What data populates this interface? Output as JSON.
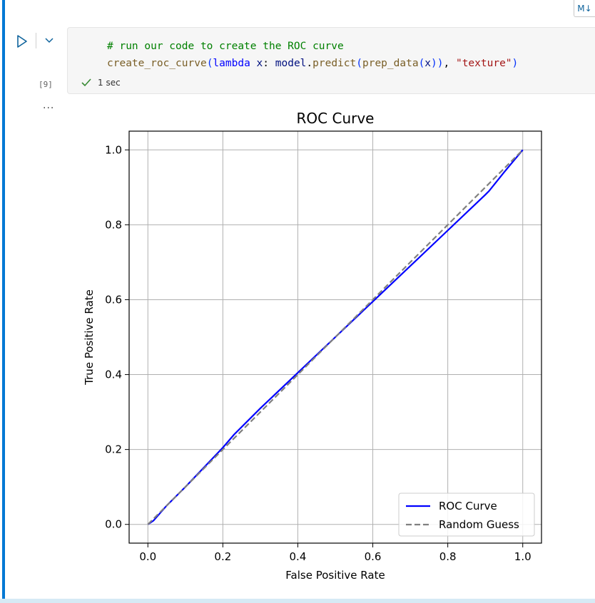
{
  "badge": {
    "label": "M↓"
  },
  "cell": {
    "execution_count": "[9]",
    "code_lines": [
      {
        "tokens": [
          {
            "t": "# run our code to create the ROC curve",
            "c": "c-comment"
          }
        ]
      },
      {
        "tokens": [
          {
            "t": "create_roc_curve",
            "c": "c-func"
          },
          {
            "t": "(",
            "c": "c-paren"
          },
          {
            "t": "lambda",
            "c": "c-kw"
          },
          {
            "t": " ",
            "c": "c-punc"
          },
          {
            "t": "x",
            "c": "c-var"
          },
          {
            "t": ": ",
            "c": "c-punc"
          },
          {
            "t": "model",
            "c": "c-var"
          },
          {
            "t": ".",
            "c": "c-punc"
          },
          {
            "t": "predict",
            "c": "c-func"
          },
          {
            "t": "(",
            "c": "c-paren"
          },
          {
            "t": "prep_data",
            "c": "c-func"
          },
          {
            "t": "(",
            "c": "c-paren"
          },
          {
            "t": "x",
            "c": "c-var"
          },
          {
            "t": "))",
            "c": "c-paren"
          },
          {
            "t": ", ",
            "c": "c-punc"
          },
          {
            "t": "\"texture\"",
            "c": "c-str"
          },
          {
            "t": ")",
            "c": "c-paren"
          }
        ]
      }
    ],
    "status": {
      "duration": "1 sec"
    },
    "output_ellipsis": "..."
  },
  "chart_data": {
    "type": "line",
    "title": "ROC Curve",
    "xlabel": "False Positive Rate",
    "ylabel": "True Positive Rate",
    "xlim": [
      -0.05,
      1.05
    ],
    "ylim": [
      -0.05,
      1.05
    ],
    "xticks": [
      "0.0",
      "0.2",
      "0.4",
      "0.6",
      "0.8",
      "1.0"
    ],
    "yticks": [
      "0.0",
      "0.2",
      "0.4",
      "0.6",
      "0.8",
      "1.0"
    ],
    "grid": true,
    "legend_position": "lower-right",
    "series": [
      {
        "name": "ROC Curve",
        "color": "#0000ff",
        "style": "solid",
        "x": [
          0.0,
          0.015,
          0.05,
          0.1,
          0.2,
          0.23,
          0.3,
          0.4,
          0.5,
          0.6,
          0.7,
          0.8,
          0.9,
          0.91,
          0.95,
          1.0
        ],
        "y": [
          0.0,
          0.01,
          0.05,
          0.1,
          0.205,
          0.24,
          0.31,
          0.405,
          0.5,
          0.595,
          0.69,
          0.785,
          0.88,
          0.89,
          0.94,
          1.0
        ]
      },
      {
        "name": "Random Guess",
        "color": "#808080",
        "style": "dashed",
        "x": [
          0.0,
          1.0
        ],
        "y": [
          0.0,
          1.0
        ]
      }
    ]
  }
}
